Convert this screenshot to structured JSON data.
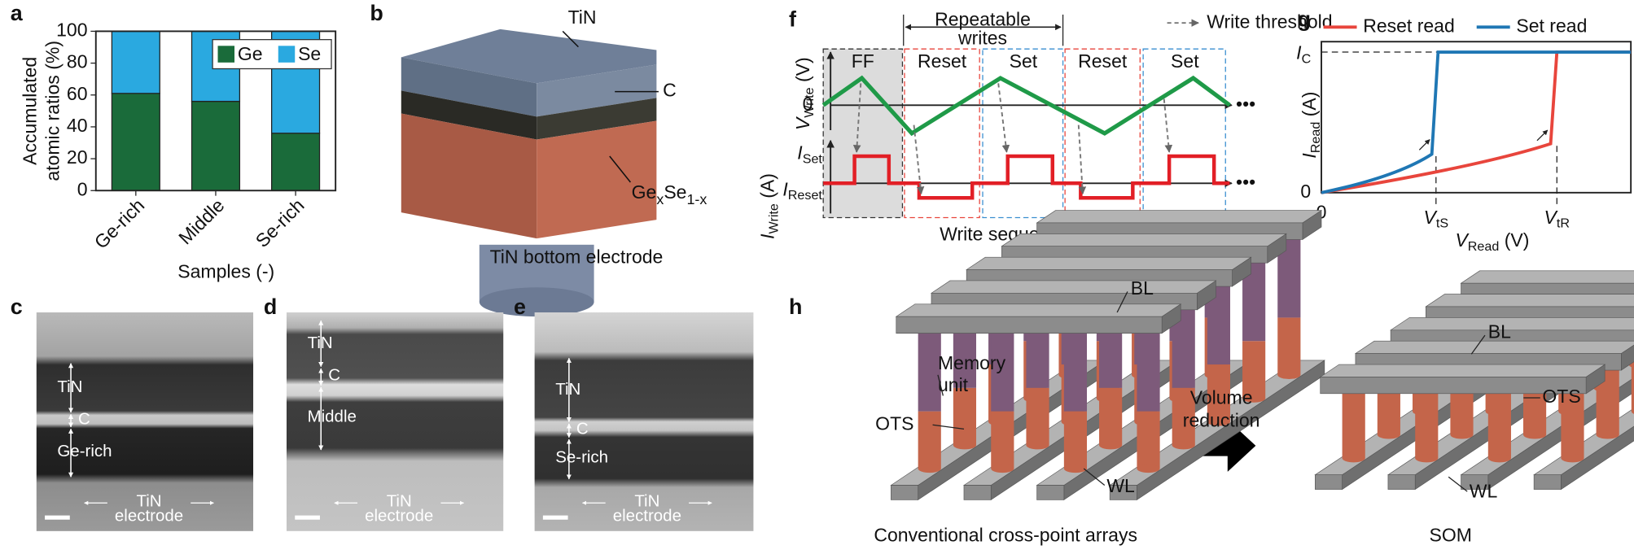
{
  "panel_labels": [
    "a",
    "b",
    "c",
    "d",
    "e",
    "f",
    "g",
    "h"
  ],
  "chart_data": {
    "type": "bar",
    "stacked": true,
    "ylabel": [
      "Accumulated",
      "atomic ratios (%)"
    ],
    "xlabel": "Samples (-)",
    "categories": [
      "Ge-rich",
      "Middle",
      "Se-rich"
    ],
    "series": [
      {
        "name": "Ge",
        "color": "#1a6b3a",
        "values": [
          61,
          56,
          36
        ]
      },
      {
        "name": "Se",
        "color": "#2aa9e0",
        "values": [
          39,
          44,
          64
        ]
      }
    ],
    "ylim": [
      0,
      100
    ],
    "yticks": [
      0,
      20,
      40,
      60,
      80,
      100
    ],
    "legend": "upper right"
  },
  "b": {
    "top": "TiN",
    "middle": "C",
    "layer": {
      "base": "Ge",
      "sub": "x",
      "base2": "Se",
      "sub2": "1-x"
    },
    "bottom": "TiN bottom electrode"
  },
  "c": {
    "layers": [
      "TiN",
      "C",
      "Ge-rich"
    ],
    "electrode": [
      "TiN",
      "electrode"
    ]
  },
  "d": {
    "layers": [
      "TiN",
      "C",
      "Middle"
    ],
    "electrode": [
      "TiN",
      "electrode"
    ]
  },
  "e": {
    "layers": [
      "TiN",
      "C",
      "Se-rich"
    ],
    "electrode": [
      "TiN",
      "electrode"
    ]
  },
  "f": {
    "header": [
      "Repeatable",
      "writes"
    ],
    "legend": "Write threshold",
    "boxes": [
      "FF",
      "Reset",
      "Set",
      "Reset",
      "Set"
    ],
    "ylabel_top": {
      "base": "V",
      "sub": "Write",
      "unit": "(V)"
    },
    "zero": "0",
    "ylabel_bottom": {
      "base": "I",
      "sub": "Write",
      "unit": "(A)"
    },
    "i_set": {
      "base": "I",
      "sub": "Set"
    },
    "i_reset": {
      "base": "I",
      "sub": "Reset"
    },
    "xlabel": "Write sequences (-)",
    "ellipsis": "•••"
  },
  "g": {
    "legend": [
      {
        "name": "Reset read",
        "color": "#e8453c"
      },
      {
        "name": "Set read",
        "color": "#1f77b4"
      }
    ],
    "ylabel": {
      "base": "I",
      "sub": "Read",
      "unit": "(A)"
    },
    "ic": {
      "base": "I",
      "sub": "C"
    },
    "zero_y": "0",
    "zero_x": "0",
    "vts": {
      "base": "V",
      "sub": "tS"
    },
    "vtr": {
      "base": "V",
      "sub": "tR"
    },
    "xlabel": {
      "base": "V",
      "sub": "Read",
      "unit": "(V)"
    }
  },
  "h": {
    "left": {
      "bl": "BL",
      "memory": [
        "Memory",
        "unit"
      ],
      "ots": "OTS",
      "wl": "WL",
      "caption": "Conventional cross-point arrays"
    },
    "arrow": [
      "Volume",
      "reduction"
    ],
    "right": {
      "bl": "BL",
      "ots": "OTS",
      "wl": "WL",
      "caption": "SOM"
    }
  }
}
